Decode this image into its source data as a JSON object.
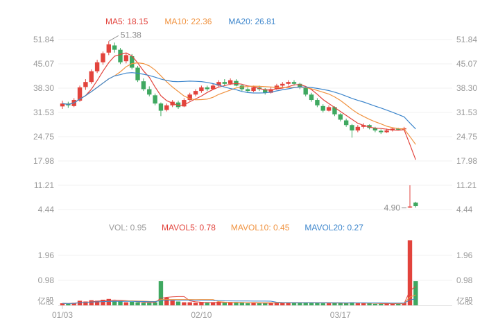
{
  "chart_data": {
    "type": "candlestick",
    "panels": [
      "price",
      "volume"
    ],
    "legend": {
      "price": {
        "ma5": "MA5: 18.15",
        "ma10": "MA10: 22.36",
        "ma20": "MA20: 26.81"
      },
      "volume": {
        "vol": "VOL: 0.95",
        "mavol5": "MAVOL5: 0.78",
        "mavol10": "MAVOL10: 0.45",
        "mavol20": "MAVOL20: 0.27"
      }
    },
    "price_axis_ticks": [
      "51.84",
      "45.07",
      "38.30",
      "31.53",
      "24.75",
      "17.98",
      "11.21",
      "4.44"
    ],
    "volume_axis_ticks": [
      "1.96",
      "0.98"
    ],
    "volume_unit": "亿股",
    "x_axis_labels": [
      {
        "i": 0,
        "label": "01/03"
      },
      {
        "i": 24,
        "label": "02/10"
      },
      {
        "i": 48,
        "label": "03/17"
      }
    ],
    "annotations": [
      {
        "text": "51.38",
        "i": 8,
        "price": 51.38,
        "side": "above"
      },
      {
        "text": "4.90",
        "i": 60,
        "price": 4.9,
        "side": "left"
      }
    ],
    "ma_periods": [
      5,
      10,
      20
    ],
    "candles": [
      [
        33.2,
        34.8,
        32.5,
        34.0
      ],
      [
        34.0,
        34.5,
        32.8,
        33.5
      ],
      [
        33.3,
        35.5,
        33.0,
        35.0
      ],
      [
        34.8,
        39.0,
        34.5,
        38.5
      ],
      [
        38.6,
        40.8,
        37.8,
        40.0
      ],
      [
        40.0,
        43.5,
        39.5,
        43.0
      ],
      [
        43.0,
        46.2,
        42.5,
        45.5
      ],
      [
        45.5,
        48.5,
        44.8,
        48.0
      ],
      [
        48.2,
        51.38,
        47.5,
        50.5
      ],
      [
        50.2,
        51.0,
        48.2,
        49.0
      ],
      [
        49.0,
        49.5,
        45.0,
        45.5
      ],
      [
        45.8,
        48.2,
        45.2,
        47.5
      ],
      [
        47.2,
        47.8,
        43.5,
        44.0
      ],
      [
        44.0,
        44.5,
        40.0,
        40.5
      ],
      [
        40.2,
        41.0,
        37.5,
        38.0
      ],
      [
        38.0,
        38.8,
        36.0,
        36.5
      ],
      [
        36.3,
        36.8,
        33.5,
        34.0
      ],
      [
        34.0,
        34.3,
        30.5,
        32.0
      ],
      [
        32.2,
        34.0,
        31.8,
        33.5
      ],
      [
        33.5,
        35.0,
        33.0,
        34.5
      ],
      [
        34.3,
        34.8,
        32.5,
        33.0
      ],
      [
        33.2,
        35.5,
        33.0,
        35.0
      ],
      [
        35.0,
        37.0,
        34.8,
        36.5
      ],
      [
        36.5,
        38.0,
        36.0,
        37.5
      ],
      [
        37.5,
        39.0,
        37.0,
        38.5
      ],
      [
        38.5,
        39.0,
        37.5,
        38.0
      ],
      [
        38.0,
        39.5,
        37.8,
        39.0
      ],
      [
        39.0,
        40.5,
        38.5,
        40.0
      ],
      [
        40.0,
        40.8,
        39.0,
        39.5
      ],
      [
        39.5,
        41.0,
        39.2,
        40.5
      ],
      [
        40.3,
        40.8,
        38.8,
        39.0
      ],
      [
        39.0,
        39.3,
        37.5,
        38.0
      ],
      [
        38.0,
        38.5,
        37.0,
        37.5
      ],
      [
        37.5,
        39.0,
        37.2,
        38.5
      ],
      [
        38.5,
        39.0,
        37.5,
        38.0
      ],
      [
        38.0,
        38.3,
        36.5,
        37.0
      ],
      [
        37.0,
        38.5,
        36.8,
        38.0
      ],
      [
        38.0,
        39.5,
        37.8,
        39.0
      ],
      [
        39.0,
        40.0,
        38.5,
        39.5
      ],
      [
        39.5,
        40.5,
        39.0,
        40.0
      ],
      [
        40.0,
        40.5,
        39.0,
        39.5
      ],
      [
        39.5,
        39.8,
        38.0,
        38.5
      ],
      [
        38.3,
        38.6,
        36.0,
        36.5
      ],
      [
        36.5,
        37.0,
        34.5,
        35.0
      ],
      [
        35.0,
        35.5,
        33.0,
        33.5
      ],
      [
        33.3,
        33.8,
        31.5,
        32.0
      ],
      [
        32.0,
        33.5,
        31.8,
        33.0
      ],
      [
        33.0,
        33.2,
        30.5,
        31.0
      ],
      [
        31.0,
        31.3,
        29.0,
        29.5
      ],
      [
        29.3,
        29.8,
        27.5,
        28.0
      ],
      [
        28.0,
        28.3,
        24.5,
        26.5
      ],
      [
        26.5,
        28.0,
        26.0,
        27.5
      ],
      [
        27.5,
        28.5,
        27.0,
        28.0
      ],
      [
        28.0,
        28.2,
        26.8,
        27.2
      ],
      [
        27.2,
        27.5,
        26.0,
        26.5
      ],
      [
        26.4,
        26.8,
        25.5,
        26.0
      ],
      [
        26.0,
        27.0,
        25.8,
        26.5
      ],
      [
        26.5,
        27.3,
        26.2,
        27.0
      ],
      [
        27.0,
        27.2,
        26.5,
        26.9
      ],
      [
        26.9,
        27.5,
        26.6,
        27.1
      ],
      [
        5.0,
        11.2,
        4.9,
        5.3
      ],
      [
        6.4,
        6.6,
        5.0,
        5.4
      ]
    ],
    "volumes": [
      0.08,
      0.06,
      0.1,
      0.18,
      0.15,
      0.2,
      0.18,
      0.22,
      0.25,
      0.18,
      0.15,
      0.12,
      0.14,
      0.12,
      0.1,
      0.1,
      0.12,
      0.95,
      0.3,
      0.2,
      0.15,
      0.12,
      0.12,
      0.1,
      0.12,
      0.1,
      0.12,
      0.14,
      0.1,
      0.12,
      0.1,
      0.1,
      0.08,
      0.1,
      0.08,
      0.08,
      0.1,
      0.12,
      0.1,
      0.12,
      0.1,
      0.1,
      0.12,
      0.1,
      0.1,
      0.08,
      0.08,
      0.1,
      0.1,
      0.08,
      0.12,
      0.08,
      0.08,
      0.08,
      0.06,
      0.06,
      0.08,
      0.06,
      0.06,
      0.1,
      2.55,
      0.95
    ],
    "colors": {
      "up": "#e2433c",
      "down": "#3fa860",
      "ma5": "#e2433c",
      "ma10": "#f0923f",
      "ma20": "#3d86cc",
      "vol_label": "#999999",
      "axis_text": "#999999",
      "grid": "#f0f0f0",
      "baseline": "#e2e2e2",
      "tick_mark": "#cccccc",
      "annotation": "#8c8c8c"
    }
  }
}
